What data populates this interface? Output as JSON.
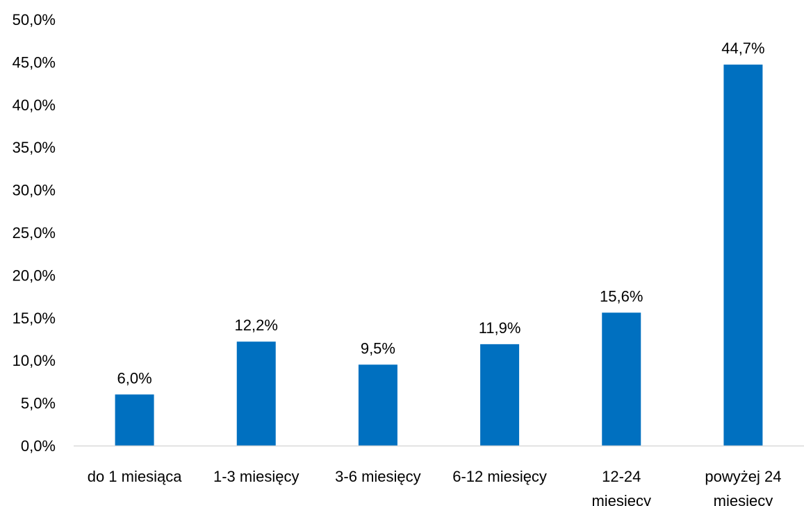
{
  "chart_data": {
    "type": "bar",
    "categories": [
      [
        "do 1 miesiąca"
      ],
      [
        "1-3 miesięcy"
      ],
      [
        "3-6 miesięcy"
      ],
      [
        "6-12 miesięcy"
      ],
      [
        "12-24",
        "miesięcy"
      ],
      [
        "powyżej 24",
        "miesięcy"
      ]
    ],
    "values": [
      6.0,
      12.2,
      9.5,
      11.9,
      15.6,
      44.7
    ],
    "data_labels": [
      "6,0%",
      "12,2%",
      "9,5%",
      "11,9%",
      "15,6%",
      "44,7%"
    ],
    "y_ticks": [
      "0,0%",
      "5,0%",
      "10,0%",
      "15,0%",
      "20,0%",
      "25,0%",
      "30,0%",
      "35,0%",
      "40,0%",
      "45,0%",
      "50,0%"
    ],
    "ylim": [
      0,
      50
    ],
    "title": "",
    "xlabel": "",
    "ylabel": "",
    "grid": false,
    "legend": "none",
    "bar_color": "#0070C0",
    "axis_color": "#D9D9D9"
  }
}
